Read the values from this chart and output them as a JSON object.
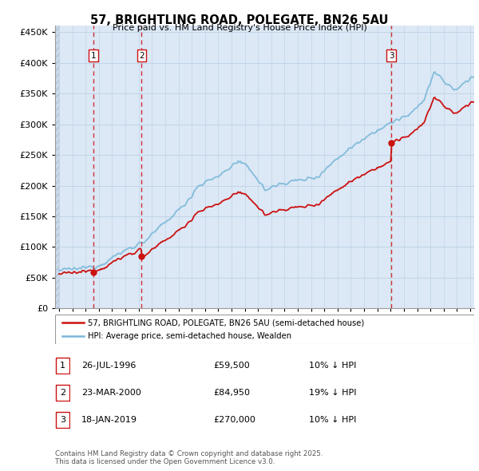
{
  "title": "57, BRIGHTLING ROAD, POLEGATE, BN26 5AU",
  "subtitle": "Price paid vs. HM Land Registry's House Price Index (HPI)",
  "legend_line1": "57, BRIGHTLING ROAD, POLEGATE, BN26 5AU (semi-detached house)",
  "legend_line2": "HPI: Average price, semi-detached house, Wealden",
  "footer": "Contains HM Land Registry data © Crown copyright and database right 2025.\nThis data is licensed under the Open Government Licence v3.0.",
  "transactions": [
    {
      "num": 1,
      "date": "26-JUL-1996",
      "price": 59500,
      "hpi_note": "10% ↓ HPI",
      "year": 1996.57
    },
    {
      "num": 2,
      "date": "23-MAR-2000",
      "price": 84950,
      "hpi_note": "19% ↓ HPI",
      "year": 2000.23
    },
    {
      "num": 3,
      "date": "18-JAN-2019",
      "price": 270000,
      "hpi_note": "10% ↓ HPI",
      "year": 2019.05
    }
  ],
  "xmin": 1993.7,
  "xmax": 2025.3,
  "ymin": 0,
  "ymax": 460000,
  "yticks": [
    0,
    50000,
    100000,
    150000,
    200000,
    250000,
    300000,
    350000,
    400000,
    450000
  ],
  "ytick_labels": [
    "£0",
    "£50K",
    "£100K",
    "£150K",
    "£200K",
    "£250K",
    "£300K",
    "£350K",
    "£400K",
    "£450K"
  ],
  "hpi_color": "#7ab8d9",
  "price_color": "#cc1111",
  "marker_color": "#cc1111",
  "vline_color": "#cc1111",
  "grid_color": "#c0d4e8",
  "bg_color": "#dce8f5",
  "hatch_bg": "#ccdaeb"
}
